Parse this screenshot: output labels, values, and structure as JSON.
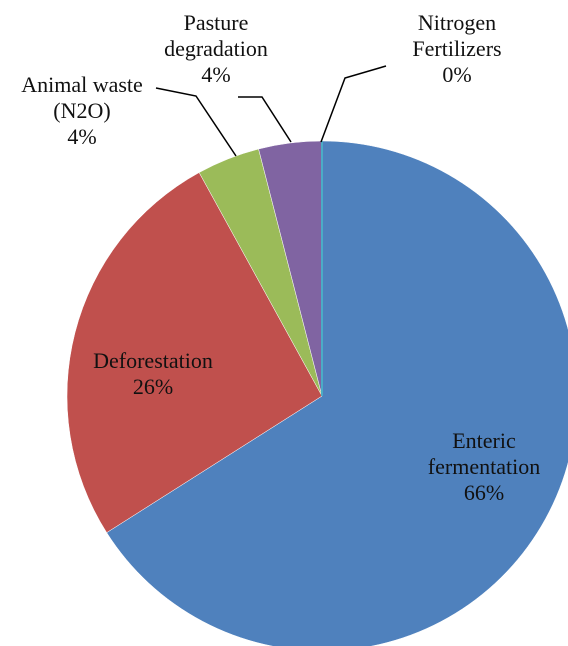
{
  "chart_data": {
    "type": "pie",
    "categories": [
      "Enteric fermentation",
      "Deforestation",
      "Animal waste (N2O)",
      "Pasture degradation",
      "Nitrogen Fertilizers"
    ],
    "values": [
      66,
      26,
      4,
      4,
      0
    ],
    "value_labels": [
      "66%",
      "26%",
      "4%",
      "4%",
      "0%"
    ],
    "colors": [
      "#4f81bd",
      "#c0504d",
      "#9bbb59",
      "#8064a2",
      "#4bacc6"
    ],
    "start_angle": 0,
    "direction": "clockwise"
  }
}
